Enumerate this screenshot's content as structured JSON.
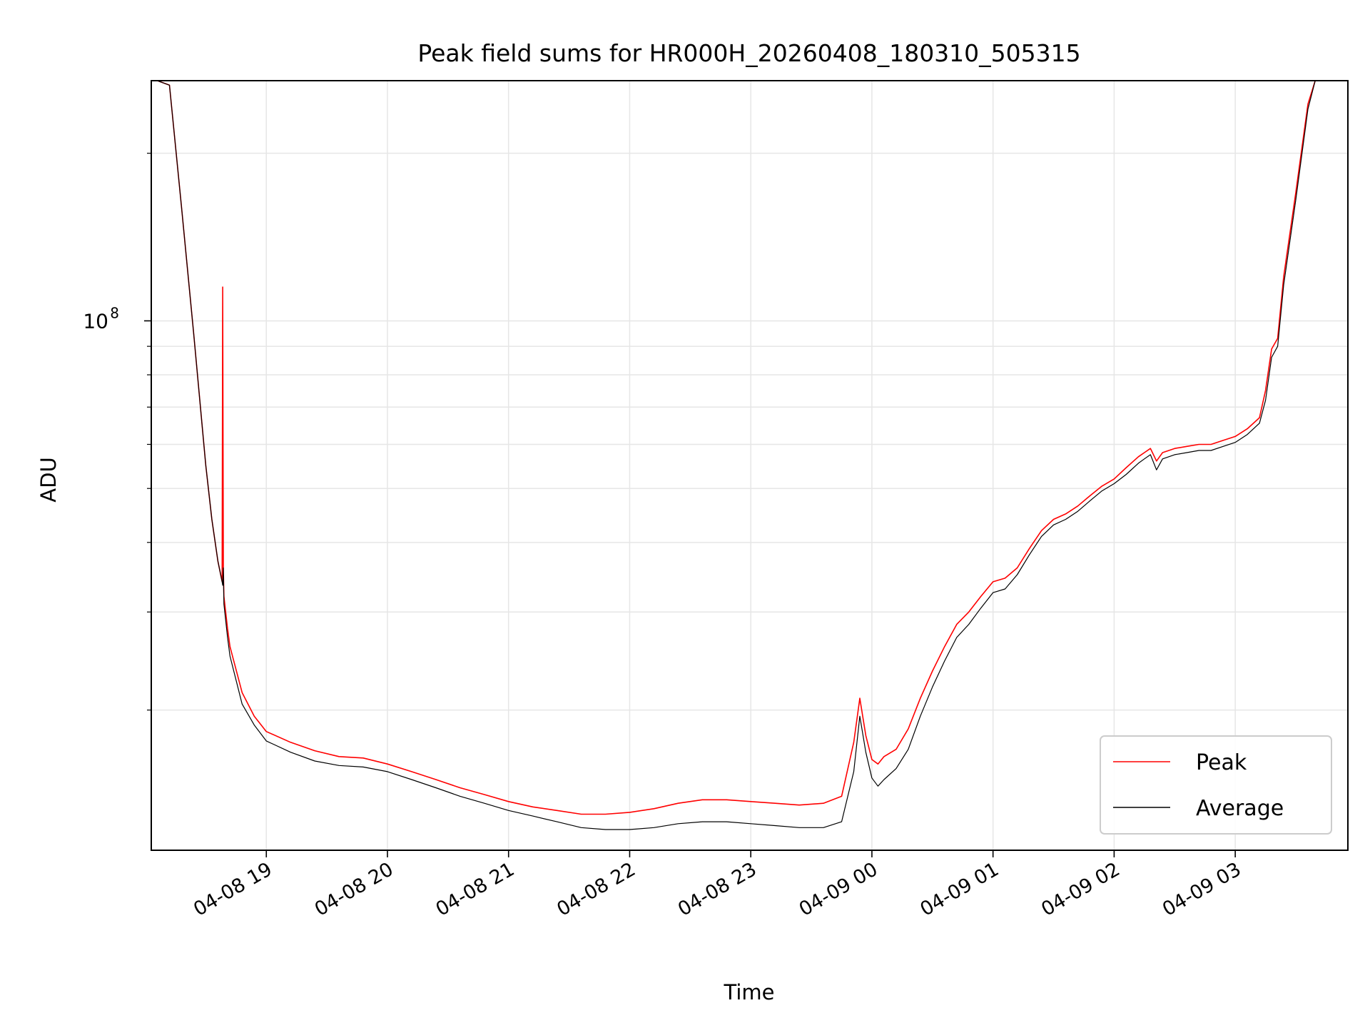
{
  "chart_data": {
    "type": "line",
    "title": "Peak field sums for HR000H_20260408_180310_505315",
    "xlabel": "Time",
    "ylabel": "ADU",
    "yscale": "log",
    "grid": true,
    "legend_position": "lower-right",
    "x_unit": "hours since 04-08 18:00",
    "xlim": [
      18.05,
      27.93
    ],
    "ylim": [
      11200000,
      270000000
    ],
    "x_ticks": [
      {
        "value": 19,
        "label": "04-08 19"
      },
      {
        "value": 20,
        "label": "04-08 20"
      },
      {
        "value": 21,
        "label": "04-08 21"
      },
      {
        "value": 22,
        "label": "04-08 22"
      },
      {
        "value": 23,
        "label": "04-08 23"
      },
      {
        "value": 24,
        "label": "04-09 00"
      },
      {
        "value": 25,
        "label": "04-09 01"
      },
      {
        "value": 26,
        "label": "04-09 02"
      },
      {
        "value": 27,
        "label": "04-09 03"
      }
    ],
    "y_major_ticks": [
      {
        "value": 100000000,
        "base": "10",
        "exponent": "8"
      }
    ],
    "y_minor_ticks": [
      20000000,
      30000000,
      40000000,
      50000000,
      60000000,
      70000000,
      80000000,
      90000000,
      200000000
    ],
    "series": [
      {
        "name": "Peak",
        "color": "#ff0000",
        "x": [
          18.05,
          18.1,
          18.2,
          18.3,
          18.4,
          18.5,
          18.55,
          18.6,
          18.635,
          18.64,
          18.645,
          18.65,
          18.68,
          18.7,
          18.8,
          18.9,
          19.0,
          19.2,
          19.4,
          19.6,
          19.8,
          20.0,
          20.2,
          20.4,
          20.6,
          20.8,
          21.0,
          21.2,
          21.4,
          21.6,
          21.8,
          22.0,
          22.2,
          22.4,
          22.6,
          22.8,
          23.0,
          23.2,
          23.4,
          23.6,
          23.75,
          23.85,
          23.9,
          23.95,
          24.0,
          24.05,
          24.1,
          24.2,
          24.3,
          24.4,
          24.5,
          24.6,
          24.7,
          24.8,
          24.9,
          25.0,
          25.1,
          25.2,
          25.3,
          25.4,
          25.5,
          25.6,
          25.7,
          25.8,
          25.9,
          26.0,
          26.1,
          26.2,
          26.25,
          26.3,
          26.35,
          26.4,
          26.5,
          26.6,
          26.7,
          26.8,
          26.9,
          27.0,
          27.1,
          27.2,
          27.25,
          27.3,
          27.35,
          27.4,
          27.5,
          27.6,
          27.66,
          27.7,
          27.93
        ],
        "values": [
          270000000,
          270000000,
          265000000,
          160000000,
          95000000,
          55000000,
          44000000,
          37000000,
          34000000,
          115000000,
          36000000,
          32000000,
          28000000,
          26000000,
          21500000,
          19500000,
          18300000,
          17500000,
          16900000,
          16500000,
          16400000,
          16000000,
          15500000,
          15000000,
          14500000,
          14100000,
          13700000,
          13400000,
          13200000,
          13000000,
          13000000,
          13100000,
          13300000,
          13600000,
          13800000,
          13800000,
          13700000,
          13600000,
          13500000,
          13600000,
          14000000,
          17500000,
          21000000,
          18000000,
          16300000,
          16000000,
          16500000,
          17000000,
          18500000,
          21000000,
          23500000,
          26000000,
          28500000,
          30000000,
          32000000,
          34000000,
          34500000,
          36000000,
          39000000,
          42000000,
          44000000,
          45000000,
          46500000,
          48500000,
          50500000,
          52000000,
          54500000,
          57000000,
          58000000,
          59000000,
          56000000,
          58000000,
          59000000,
          59500000,
          60000000,
          60000000,
          61000000,
          62000000,
          64000000,
          67000000,
          75000000,
          89000000,
          93000000,
          120000000,
          170000000,
          245000000,
          270000000,
          270000000,
          270000000
        ]
      },
      {
        "name": "Average",
        "color": "#000000",
        "x": [
          18.05,
          18.1,
          18.2,
          18.3,
          18.4,
          18.5,
          18.55,
          18.6,
          18.635,
          18.64,
          18.645,
          18.65,
          18.68,
          18.7,
          18.8,
          18.9,
          19.0,
          19.2,
          19.4,
          19.6,
          19.8,
          20.0,
          20.2,
          20.4,
          20.6,
          20.8,
          21.0,
          21.2,
          21.4,
          21.6,
          21.8,
          22.0,
          22.2,
          22.4,
          22.6,
          22.8,
          23.0,
          23.2,
          23.4,
          23.6,
          23.75,
          23.85,
          23.9,
          23.95,
          24.0,
          24.05,
          24.1,
          24.2,
          24.3,
          24.4,
          24.5,
          24.6,
          24.7,
          24.8,
          24.9,
          25.0,
          25.1,
          25.2,
          25.3,
          25.4,
          25.5,
          25.6,
          25.7,
          25.8,
          25.9,
          26.0,
          26.1,
          26.2,
          26.25,
          26.3,
          26.35,
          26.4,
          26.5,
          26.6,
          26.7,
          26.8,
          26.9,
          27.0,
          27.1,
          27.2,
          27.25,
          27.3,
          27.35,
          27.4,
          27.5,
          27.6,
          27.66,
          27.7,
          27.93
        ],
        "values": [
          270000000,
          270000000,
          265000000,
          160000000,
          95000000,
          55000000,
          44000000,
          37000000,
          34000000,
          33500000,
          36000000,
          31000000,
          27000000,
          25000000,
          20500000,
          18800000,
          17600000,
          16800000,
          16200000,
          15900000,
          15800000,
          15500000,
          15000000,
          14500000,
          14000000,
          13600000,
          13200000,
          12900000,
          12600000,
          12300000,
          12200000,
          12200000,
          12300000,
          12500000,
          12600000,
          12600000,
          12500000,
          12400000,
          12300000,
          12300000,
          12600000,
          15500000,
          19500000,
          16800000,
          15100000,
          14600000,
          15000000,
          15700000,
          17000000,
          19500000,
          22000000,
          24500000,
          27000000,
          28500000,
          30500000,
          32500000,
          33000000,
          35000000,
          38000000,
          41000000,
          43000000,
          44000000,
          45500000,
          47500000,
          49500000,
          51000000,
          53000000,
          55500000,
          56500000,
          57500000,
          54000000,
          56500000,
          57500000,
          58000000,
          58500000,
          58500000,
          59500000,
          60500000,
          62500000,
          65500000,
          72000000,
          86000000,
          90000000,
          116000000,
          165000000,
          240000000,
          270000000,
          270000000,
          270000000
        ]
      }
    ]
  }
}
